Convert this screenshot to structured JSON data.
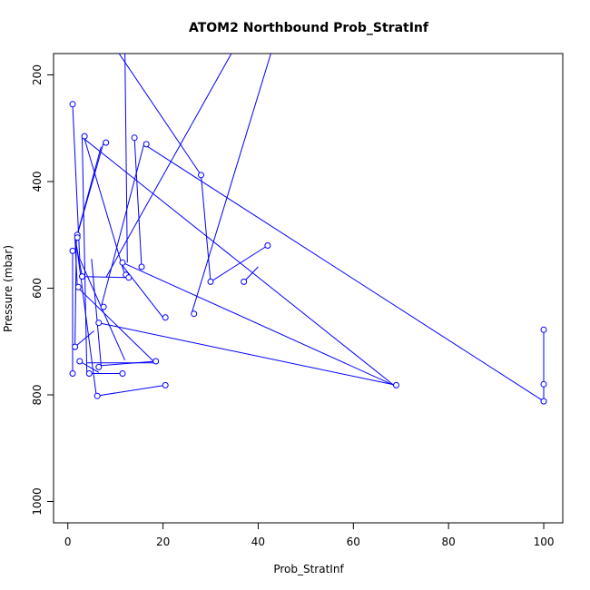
{
  "chart_data": {
    "type": "line",
    "title": "ATOM2 Northbound Prob_StratInf",
    "xlabel": "Prob_StratInf",
    "ylabel": "Pressure (mbar)",
    "xlim": [
      -3,
      104
    ],
    "ylim": [
      1040,
      160
    ],
    "y_reversed": true,
    "xticks": [
      0,
      20,
      40,
      60,
      80,
      100
    ],
    "yticks": [
      200,
      400,
      600,
      800,
      1000
    ],
    "series_color": "#0000ff",
    "lines": [
      {
        "x": [
          10,
          28
        ],
        "y": [
          150,
          388
        ]
      },
      {
        "x": [
          28,
          30
        ],
        "y": [
          388,
          588
        ]
      },
      {
        "x": [
          30,
          42
        ],
        "y": [
          588,
          520
        ]
      },
      {
        "x": [
          37,
          40
        ],
        "y": [
          588,
          560
        ]
      },
      {
        "x": [
          13,
          15
        ],
        "y": [
          150,
          150
        ]
      },
      {
        "x": [
          12,
          12.5
        ],
        "y": [
          150,
          552
        ]
      },
      {
        "x": [
          43,
          26
        ],
        "y": [
          150,
          648
        ]
      },
      {
        "x": [
          35,
          8
        ],
        "y": [
          150,
          580
        ]
      },
      {
        "x": [
          16,
          7
        ],
        "y": [
          330,
          635
        ]
      },
      {
        "x": [
          14,
          15.5
        ],
        "y": [
          318,
          560
        ]
      },
      {
        "x": [
          3,
          4
        ],
        "y": [
          315,
          760
        ]
      },
      {
        "x": [
          3.5,
          12
        ],
        "y": [
          320,
          575
        ]
      },
      {
        "x": [
          16,
          100
        ],
        "y": [
          330,
          812
        ]
      },
      {
        "x": [
          7.5,
          2
        ],
        "y": [
          327,
          500
        ]
      },
      {
        "x": [
          7,
          1.8
        ],
        "y": [
          335,
          505
        ]
      },
      {
        "x": [
          1,
          2.5
        ],
        "y": [
          255,
          545
        ]
      },
      {
        "x": [
          2.5,
          12
        ],
        "y": [
          545,
          735
        ]
      },
      {
        "x": [
          1.5,
          3
        ],
        "y": [
          505,
          578
        ]
      },
      {
        "x": [
          1.5,
          2
        ],
        "y": [
          505,
          598
        ]
      },
      {
        "x": [
          2.5,
          12.5
        ],
        "y": [
          578,
          580
        ]
      },
      {
        "x": [
          2,
          18
        ],
        "y": [
          598,
          737
        ]
      },
      {
        "x": [
          1.8,
          1.5
        ],
        "y": [
          505,
          710
        ]
      },
      {
        "x": [
          1,
          1
        ],
        "y": [
          530,
          760
        ]
      },
      {
        "x": [
          3,
          68.5
        ],
        "y": [
          317,
          782
        ]
      },
      {
        "x": [
          68.5,
          11.5
        ],
        "y": [
          782,
          552
        ]
      },
      {
        "x": [
          11,
          20
        ],
        "y": [
          552,
          655
        ]
      },
      {
        "x": [
          1.5,
          5.5
        ],
        "y": [
          710,
          680
        ]
      },
      {
        "x": [
          2.5,
          6.5
        ],
        "y": [
          737,
          758
        ]
      },
      {
        "x": [
          4,
          18.5
        ],
        "y": [
          740,
          740
        ]
      },
      {
        "x": [
          6.5,
          11.5
        ],
        "y": [
          760,
          760
        ]
      },
      {
        "x": [
          4.5,
          11.5
        ],
        "y": [
          760,
          760
        ]
      },
      {
        "x": [
          6.5,
          69
        ],
        "y": [
          665,
          782
        ]
      },
      {
        "x": [
          5,
          7
        ],
        "y": [
          545,
          745
        ]
      },
      {
        "x": [
          7,
          18.5
        ],
        "y": [
          745,
          737
        ]
      },
      {
        "x": [
          6,
          20.5
        ],
        "y": [
          802,
          782
        ]
      },
      {
        "x": [
          2,
          6
        ],
        "y": [
          530,
          802
        ]
      },
      {
        "x": [
          100,
          100
        ],
        "y": [
          678,
          780
        ]
      },
      {
        "x": [
          100,
          100
        ],
        "y": [
          690,
          812
        ]
      }
    ],
    "points": [
      {
        "x": 1,
        "y": 255
      },
      {
        "x": 3.5,
        "y": 315
      },
      {
        "x": 8,
        "y": 327
      },
      {
        "x": 14,
        "y": 318
      },
      {
        "x": 16.5,
        "y": 330
      },
      {
        "x": 28,
        "y": 388
      },
      {
        "x": 2,
        "y": 500
      },
      {
        "x": 2,
        "y": 505
      },
      {
        "x": 42,
        "y": 520
      },
      {
        "x": 1,
        "y": 530
      },
      {
        "x": 15.5,
        "y": 560
      },
      {
        "x": 11.5,
        "y": 552
      },
      {
        "x": 12.2,
        "y": 575
      },
      {
        "x": 12.8,
        "y": 580
      },
      {
        "x": 3,
        "y": 578
      },
      {
        "x": 2.2,
        "y": 598
      },
      {
        "x": 30,
        "y": 588
      },
      {
        "x": 37,
        "y": 588
      },
      {
        "x": 7.5,
        "y": 635
      },
      {
        "x": 26.5,
        "y": 648
      },
      {
        "x": 20.5,
        "y": 655
      },
      {
        "x": 6.5,
        "y": 665
      },
      {
        "x": 1.5,
        "y": 710
      },
      {
        "x": 2.5,
        "y": 737
      },
      {
        "x": 18.5,
        "y": 737
      },
      {
        "x": 6.5,
        "y": 748
      },
      {
        "x": 1,
        "y": 760
      },
      {
        "x": 4.5,
        "y": 760
      },
      {
        "x": 11.5,
        "y": 760
      },
      {
        "x": 69,
        "y": 782
      },
      {
        "x": 20.5,
        "y": 782
      },
      {
        "x": 6.2,
        "y": 802
      },
      {
        "x": 100,
        "y": 678
      },
      {
        "x": 100,
        "y": 780
      },
      {
        "x": 100,
        "y": 812
      }
    ]
  }
}
